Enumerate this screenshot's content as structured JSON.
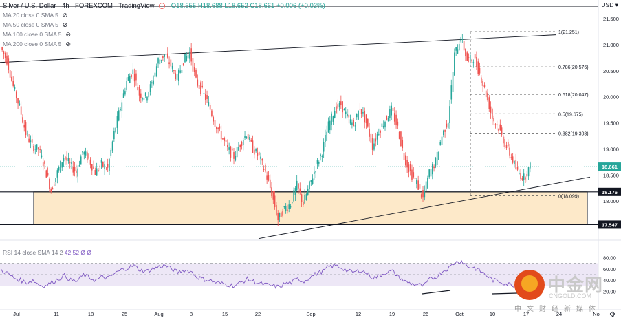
{
  "header": {
    "symbol": "Silver / U.S. Dollar · 4h · FOREXCOM · TradingView",
    "ohlc": "O18.655 H18.688 L18.652 C18.661 +0.006 (+0.03%)"
  },
  "ma_lines": [
    {
      "label": "MA 20 close 0 SMA 5"
    },
    {
      "label": "MA 50 close 0 SMA 5"
    },
    {
      "label": "MA 100 close 0 SMA 5"
    },
    {
      "label": "MA 200 close 0 SMA 5"
    }
  ],
  "currency": "USD",
  "rsi_header": {
    "label": "RSI 14 close SMA 14 2",
    "value": "42.52 Ø Ø"
  },
  "watermark": {
    "big": "中金网",
    "url": "CNGOLD.COM",
    "small": "中文财经新媒体"
  },
  "colors": {
    "up": "#26a69a",
    "down": "#ef5350",
    "zone": "#fde9c9",
    "rsi": "#7e57c2",
    "rsi_band": "#ede7f6",
    "last_price": "#26a69a"
  },
  "chart_data": {
    "type": "candlestick",
    "price_axis": {
      "min": 17.5,
      "max": 21.7,
      "ticks": [
        "21.500",
        "21.000",
        "20.500",
        "20.000",
        "19.500",
        "19.000",
        "18.500",
        "18.000"
      ],
      "tick_values": [
        21.5,
        21.0,
        20.5,
        20.0,
        19.5,
        19.0,
        18.5,
        18.0
      ]
    },
    "price_labels": [
      {
        "text": "18.661",
        "value": 18.661,
        "style": "last"
      },
      {
        "text": "18.176",
        "value": 18.176,
        "style": "dark"
      },
      {
        "text": "17.547",
        "value": 17.547,
        "style": "dark"
      }
    ],
    "x_labels": [
      "Jul",
      "11",
      "18",
      "25",
      "Aug",
      "8",
      "15",
      "22",
      "Sep",
      "12",
      "19",
      "26",
      "Oct",
      "10",
      "17",
      "24",
      "No"
    ],
    "fibonacci": [
      {
        "label": "1(21.251)",
        "value": 21.251
      },
      {
        "label": "0.786(20.576)",
        "value": 20.576
      },
      {
        "label": "0.618(20.047)",
        "value": 20.047
      },
      {
        "label": "0.5(19.675)",
        "value": 19.675
      },
      {
        "label": "0.382(19.303)",
        "value": 19.303
      },
      {
        "label": "0(18.099)",
        "value": 18.099
      }
    ],
    "support_zone": {
      "top": 18.176,
      "bottom": 17.547
    },
    "rsi_axis": {
      "ticks": [
        "80.00",
        "60.00",
        "40.00",
        "20.00"
      ],
      "tick_values": [
        80,
        60,
        40,
        20
      ],
      "band": [
        30,
        70
      ]
    },
    "close_path": [
      20.95,
      20.7,
      20.2,
      19.8,
      19.3,
      19.05,
      19.0,
      18.65,
      18.2,
      18.55,
      18.85,
      18.7,
      18.55,
      18.95,
      18.8,
      18.55,
      18.7,
      18.62,
      19.3,
      19.8,
      20.3,
      20.5,
      20.05,
      20.0,
      20.25,
      20.7,
      20.8,
      20.6,
      20.35,
      20.7,
      20.85,
      20.3,
      20.1,
      19.85,
      19.5,
      19.25,
      19.0,
      18.85,
      19.1,
      19.3,
      19.0,
      18.85,
      18.55,
      18.15,
      17.65,
      17.85,
      17.95,
      18.3,
      17.95,
      18.3,
      18.65,
      18.95,
      19.45,
      19.75,
      19.85,
      19.6,
      19.45,
      19.8,
      19.5,
      19.05,
      19.35,
      19.55,
      19.75,
      19.4,
      18.85,
      18.55,
      18.35,
      18.05,
      18.55,
      18.75,
      19.25,
      19.55,
      20.8,
      21.15,
      20.7,
      20.75,
      20.45,
      20.05,
      19.6,
      19.4,
      19.1,
      18.85,
      18.55,
      18.45,
      18.661
    ],
    "rsi_path": [
      58,
      52,
      44,
      40,
      36,
      40,
      32,
      30,
      36,
      42,
      48,
      40,
      38,
      50,
      44,
      40,
      46,
      44,
      52,
      58,
      62,
      66,
      58,
      56,
      60,
      64,
      66,
      60,
      54,
      58,
      56,
      46,
      42,
      40,
      36,
      34,
      32,
      30,
      36,
      42,
      38,
      34,
      32,
      30,
      28,
      34,
      36,
      42,
      38,
      46,
      52,
      56,
      64,
      66,
      62,
      56,
      54,
      58,
      52,
      44,
      48,
      54,
      56,
      46,
      38,
      34,
      32,
      30,
      42,
      46,
      56,
      62,
      72,
      74,
      64,
      62,
      56,
      48,
      40,
      38,
      34,
      32,
      30,
      36,
      42
    ]
  }
}
